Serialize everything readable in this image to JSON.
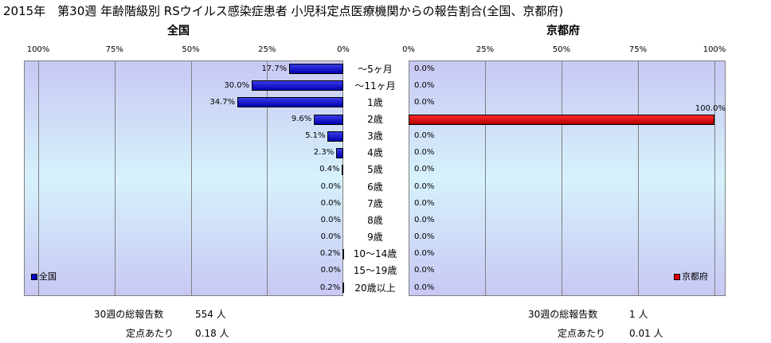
{
  "title": "2015年　第30週 年齢階級別 RSウイルス感染症患者 小児科定点医療機関からの報告割合(全国、京都府)",
  "categories": [
    "～5ヶ月",
    "～11ヶ月",
    "1歳",
    "2歳",
    "3歳",
    "4歳",
    "5歳",
    "6歳",
    "7歳",
    "8歳",
    "9歳",
    "10～14歳",
    "15～19歳",
    "20歳以上"
  ],
  "chart_data": [
    {
      "type": "bar",
      "orientation": "horizontal",
      "direction": "right-to-left",
      "title": "全国",
      "tick_labels": [
        "100%",
        "75%",
        "50%",
        "25%",
        "0%"
      ],
      "xlim": [
        0,
        100
      ],
      "grid": true,
      "legend": "bottom-left",
      "series": [
        {
          "name": "全国",
          "color": "#0000c8",
          "values": [
            17.7,
            30.0,
            34.7,
            9.6,
            5.1,
            2.3,
            0.4,
            0.0,
            0.0,
            0.0,
            0.0,
            0.2,
            0.0,
            0.2
          ],
          "labels": [
            "17.7%",
            "30.0%",
            "34.7%",
            "9.6%",
            "5.1%",
            "2.3%",
            "0.4%",
            "0.0%",
            "0.0%",
            "0.0%",
            "0.0%",
            "0.2%",
            "0.0%",
            "0.2%"
          ]
        }
      ]
    },
    {
      "type": "bar",
      "orientation": "horizontal",
      "direction": "left-to-right",
      "title": "京都府",
      "tick_labels": [
        "0%",
        "25%",
        "50%",
        "75%",
        "100%"
      ],
      "xlim": [
        0,
        100
      ],
      "grid": true,
      "legend": "bottom-right",
      "series": [
        {
          "name": "京都府",
          "color": "#e00000",
          "values": [
            0,
            0,
            0,
            100,
            0,
            0,
            0,
            0,
            0,
            0,
            0,
            0,
            0,
            0
          ],
          "labels": [
            "0.0%",
            "0.0%",
            "0.0%",
            "100.0%",
            "0.0%",
            "0.0%",
            "0.0%",
            "0.0%",
            "0.0%",
            "0.0%",
            "0.0%",
            "0.0%",
            "0.0%",
            "0.0%"
          ]
        }
      ]
    }
  ],
  "footer": {
    "national": {
      "total_label": "30週の総報告数",
      "total_value": "554 人",
      "per_label": "定点あたり",
      "per_value": "0.18 人"
    },
    "kyoto": {
      "total_label": "30週の総報告数",
      "total_value": "1 人",
      "per_label": "定点あたり",
      "per_value": "0.01 人"
    }
  }
}
